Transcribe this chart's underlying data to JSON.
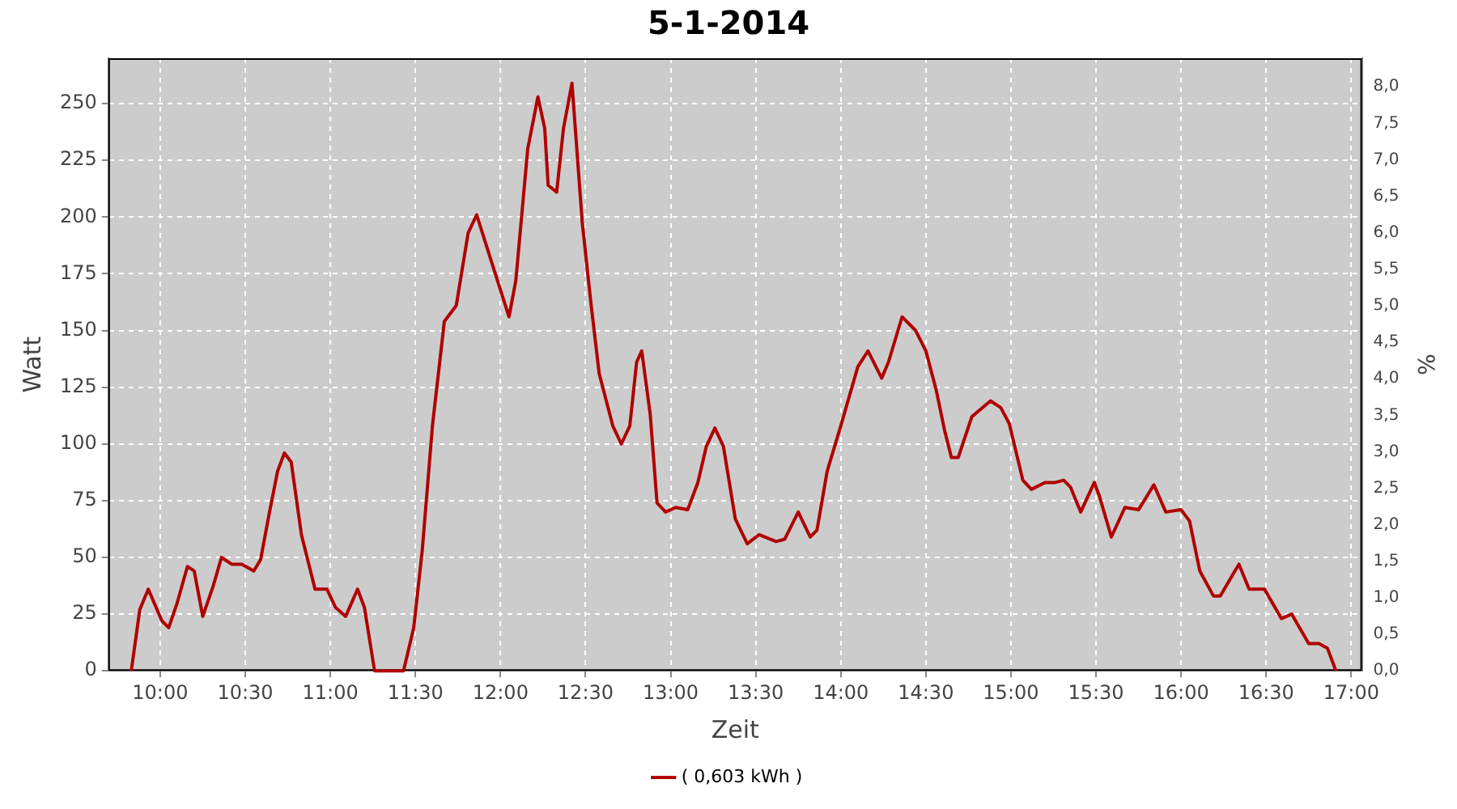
{
  "chart_data": {
    "type": "line",
    "title": "5-1-2014",
    "xlabel": "Zeit",
    "ylabel": "Watt",
    "y2label": "%",
    "xlim": [
      9.695,
      17.063
    ],
    "xticks": [
      {
        "value": 10,
        "label": "10:00"
      },
      {
        "value": 10.5,
        "label": "10:30"
      },
      {
        "value": 11,
        "label": "11:00"
      },
      {
        "value": 11.5,
        "label": "11:30"
      },
      {
        "value": 12,
        "label": "12:00"
      },
      {
        "value": 12.5,
        "label": "12:30"
      },
      {
        "value": 13,
        "label": "13:00"
      },
      {
        "value": 13.5,
        "label": "13:30"
      },
      {
        "value": 14,
        "label": "14:00"
      },
      {
        "value": 14.5,
        "label": "14:30"
      },
      {
        "value": 15,
        "label": "15:00"
      },
      {
        "value": 15.5,
        "label": "15:30"
      },
      {
        "value": 16,
        "label": "16:00"
      },
      {
        "value": 16.5,
        "label": "16:30"
      },
      {
        "value": 17,
        "label": "17:00"
      }
    ],
    "ylim": [
      0,
      270
    ],
    "yticks": [
      0,
      25,
      50,
      75,
      100,
      125,
      150,
      175,
      200,
      225,
      250
    ],
    "y2lim": [
      0,
      8.39
    ],
    "y2ticks": [
      {
        "value": 0,
        "label": "0,0"
      },
      {
        "value": 0.5,
        "label": "0,5"
      },
      {
        "value": 1,
        "label": "1,0"
      },
      {
        "value": 1.5,
        "label": "1,5"
      },
      {
        "value": 2,
        "label": "2,0"
      },
      {
        "value": 2.5,
        "label": "2,5"
      },
      {
        "value": 3,
        "label": "3,0"
      },
      {
        "value": 3.5,
        "label": "3,5"
      },
      {
        "value": 4,
        "label": "4,0"
      },
      {
        "value": 4.5,
        "label": "4,5"
      },
      {
        "value": 5,
        "label": "5,0"
      },
      {
        "value": 5.5,
        "label": "5,5"
      },
      {
        "value": 6,
        "label": "6,0"
      },
      {
        "value": 6.5,
        "label": "6,5"
      },
      {
        "value": 7,
        "label": "7,0"
      },
      {
        "value": 7.5,
        "label": "7,5"
      },
      {
        "value": 8,
        "label": "8,0"
      }
    ],
    "grid": true,
    "legend": "bottom",
    "marker": "none",
    "line_style": "solid",
    "series": [
      {
        "name": "( 0,603 kWh )",
        "color": "#b00000",
        "x": [
          9.83,
          9.88,
          9.93,
          10.01,
          10.05,
          10.1,
          10.16,
          10.2,
          10.25,
          10.31,
          10.36,
          10.42,
          10.48,
          10.55,
          10.59,
          10.64,
          10.69,
          10.73,
          10.77,
          10.83,
          10.91,
          10.98,
          11.03,
          11.09,
          11.16,
          11.2,
          11.26,
          11.34,
          11.43,
          11.49,
          11.54,
          11.6,
          11.67,
          11.74,
          11.81,
          11.86,
          11.94,
          12.05,
          12.09,
          12.16,
          12.22,
          12.26,
          12.28,
          12.33,
          12.37,
          12.42,
          12.48,
          12.53,
          12.58,
          12.66,
          12.71,
          12.76,
          12.8,
          12.83,
          12.88,
          12.92,
          12.97,
          13.03,
          13.1,
          13.16,
          13.21,
          13.26,
          13.31,
          13.38,
          13.45,
          13.52,
          13.62,
          13.67,
          13.75,
          13.82,
          13.86,
          13.92,
          14,
          14.1,
          14.16,
          14.24,
          14.28,
          14.36,
          14.44,
          14.5,
          14.56,
          14.61,
          14.65,
          14.69,
          14.77,
          14.88,
          14.94,
          14.99,
          15.07,
          15.12,
          15.2,
          15.26,
          15.31,
          15.35,
          15.41,
          15.49,
          15.52,
          15.59,
          15.67,
          15.75,
          15.84,
          15.91,
          16,
          16.05,
          16.11,
          16.19,
          16.23,
          16.34,
          16.4,
          16.49,
          16.59,
          16.65,
          16.75,
          16.81,
          16.86,
          16.91
        ],
        "values": [
          0,
          27,
          36,
          22,
          19,
          30,
          46,
          44,
          24,
          37,
          50,
          47,
          47,
          44,
          49,
          69,
          88,
          96,
          92,
          60,
          36,
          36,
          28,
          24,
          36,
          28,
          0,
          0,
          0,
          19,
          53,
          108,
          154,
          161,
          193,
          201,
          182,
          156,
          172,
          230,
          253,
          239,
          214,
          211,
          239,
          259,
          198,
          163,
          131,
          108,
          100,
          108,
          136,
          141,
          113,
          74,
          70,
          72,
          71,
          83,
          99,
          107,
          99,
          67,
          56,
          60,
          57,
          58,
          70,
          59,
          62,
          88,
          108,
          134,
          141,
          129,
          136,
          156,
          150,
          141,
          124,
          106,
          94,
          94,
          112,
          119,
          116,
          109,
          84,
          80,
          83,
          83,
          84,
          81,
          70,
          83,
          77,
          59,
          72,
          71,
          82,
          70,
          71,
          66,
          44,
          33,
          33,
          47,
          36,
          36,
          23,
          25,
          12,
          12,
          10,
          0
        ]
      }
    ]
  }
}
